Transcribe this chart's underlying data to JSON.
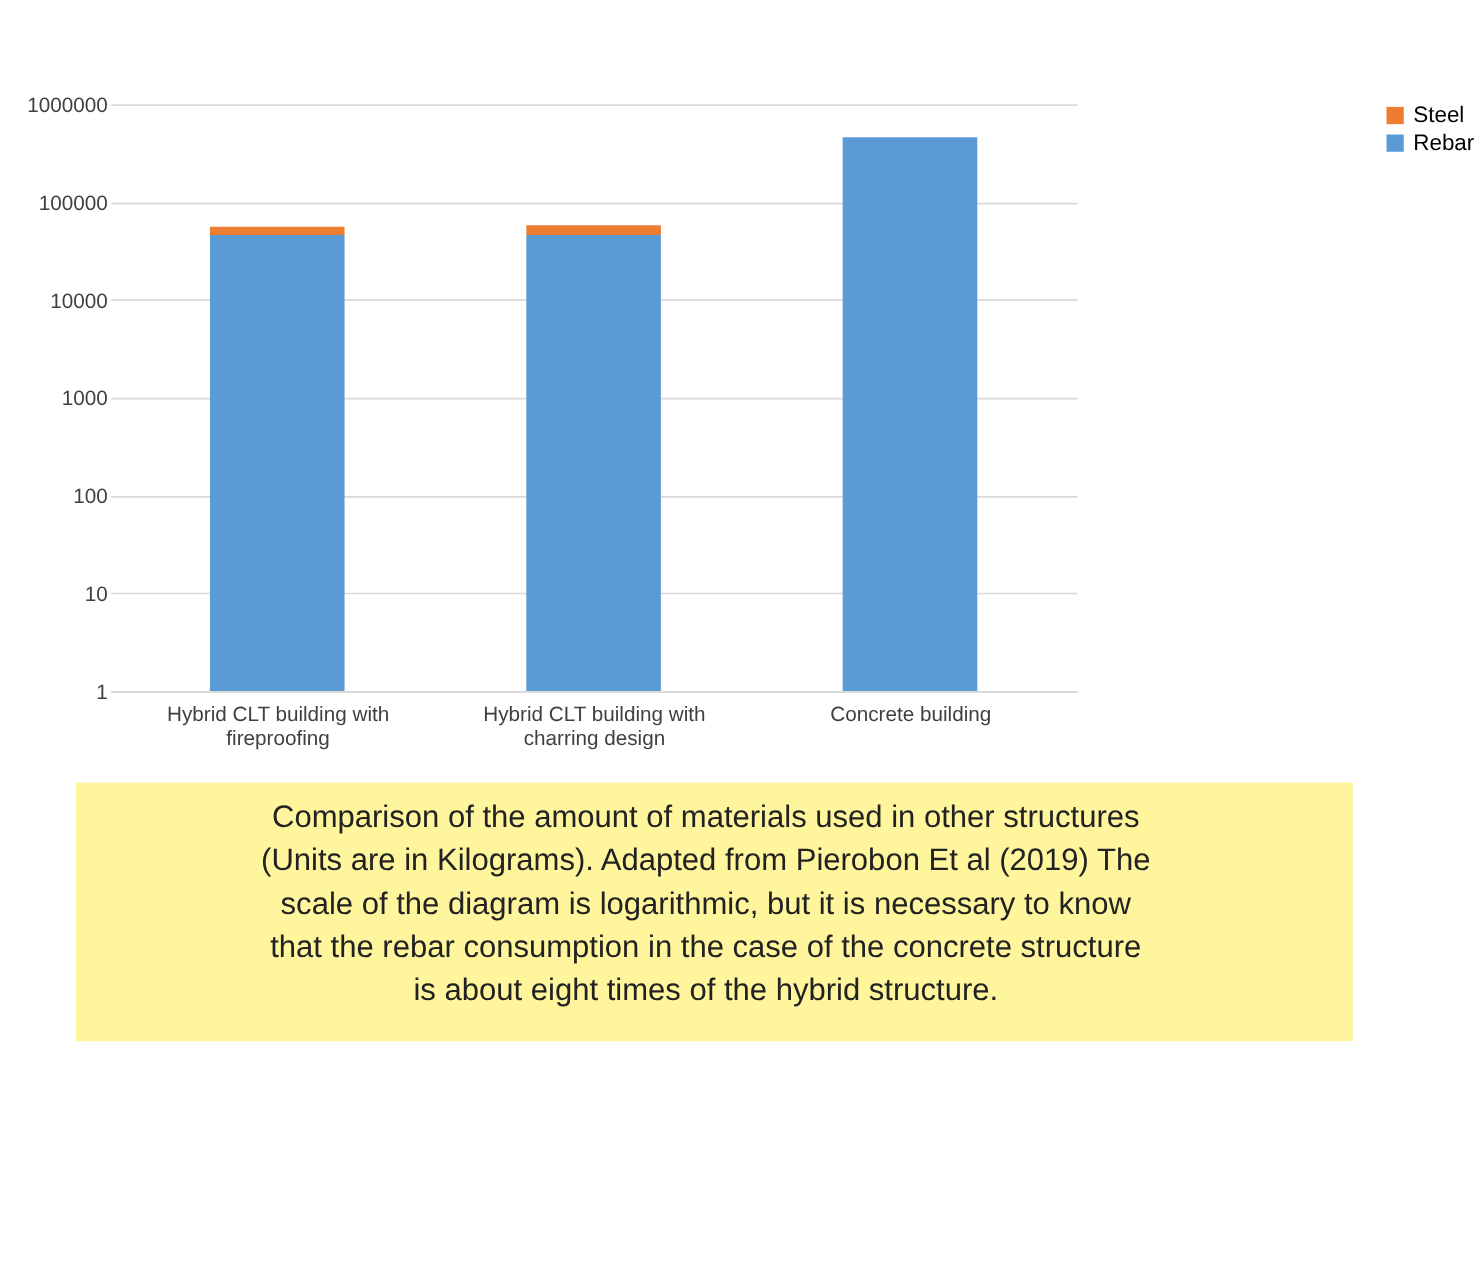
{
  "chart_data": {
    "type": "bar",
    "stacked": true,
    "log": true,
    "categories": [
      "Hybrid CLT building with fireproofing",
      "Hybrid CLT building with charring design",
      "Concrete building"
    ],
    "series": [
      {
        "name": "Rebar",
        "color": "#5b9bd5",
        "values": [
          46000,
          46000,
          460000
        ]
      },
      {
        "name": "Steel",
        "color": "#ed7d31",
        "values": [
          10000,
          12000,
          null
        ]
      }
    ],
    "ylim": [
      1,
      1000000
    ],
    "yticks": [
      1,
      10,
      100,
      1000,
      10000,
      100000,
      1000000
    ],
    "grid": "y",
    "legend": "right",
    "annotations": [
      "Comparison of the amount of materials used in other structures (Units are in Kilograms). Adapted from Pierobon Et al (2019) The scale of the diagram is logarithmic, but it is necessary to know that the rebar consumption in the case of the concrete structure is about eight times of the hybrid structure."
    ]
  }
}
